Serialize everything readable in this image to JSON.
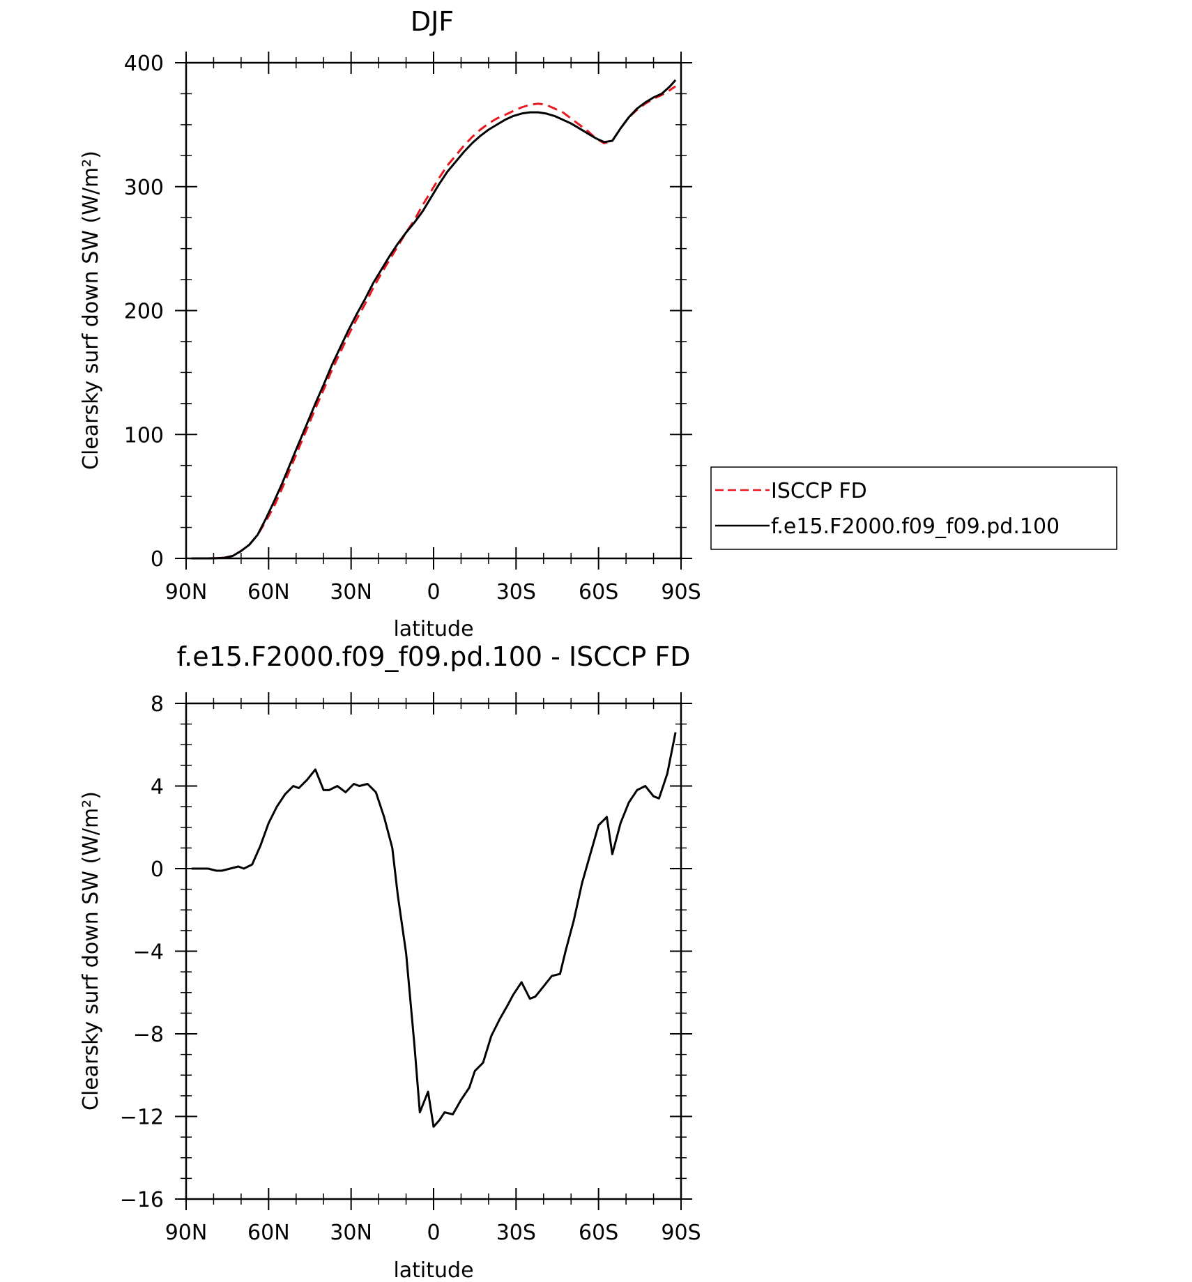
{
  "chart_data": [
    {
      "type": "line",
      "title": "DJF",
      "xlabel": "latitude",
      "ylabel": "Clearsky surf down SW (W/m²)",
      "xlim": [
        -90,
        90
      ],
      "ylim": [
        0,
        400
      ],
      "xticks": [
        -90,
        -60,
        -30,
        0,
        30,
        60,
        90
      ],
      "xtick_labels": [
        "90N",
        "60N",
        "30N",
        "0",
        "30S",
        "60S",
        "90S"
      ],
      "yticks": [
        0,
        100,
        200,
        300,
        400
      ],
      "ytick_labels": [
        "0",
        "100",
        "200",
        "300",
        "400"
      ],
      "grid": false,
      "legend_position": "right",
      "series": [
        {
          "name": "ISCCP FD",
          "color": "#e8191e",
          "style": "dashed",
          "x": [
            -88,
            -85,
            -82,
            -79,
            -76,
            -73,
            -70,
            -67,
            -64,
            -61,
            -58,
            -55,
            -52,
            -49,
            -46,
            -43,
            -40,
            -37,
            -34,
            -31,
            -28,
            -25,
            -22,
            -19,
            -16,
            -13,
            -10,
            -7,
            -4,
            -1,
            2,
            5,
            8,
            11,
            14,
            17,
            20,
            23,
            26,
            29,
            32,
            35,
            38,
            41,
            44,
            47,
            50,
            53,
            56,
            59,
            62,
            65,
            68,
            71,
            74,
            77,
            80,
            83,
            86,
            88
          ],
          "y": [
            0,
            0,
            0,
            0.2,
            0.6,
            2,
            6,
            11,
            19,
            30,
            42,
            57,
            73,
            89,
            105,
            121,
            136,
            152,
            166,
            180,
            193,
            205,
            218,
            230,
            241,
            252,
            263,
            273,
            285,
            296,
            307,
            317,
            325,
            333,
            340,
            346,
            351,
            355,
            358,
            361,
            364,
            366,
            367,
            366,
            363,
            360,
            355,
            350,
            345,
            339,
            335,
            337,
            347,
            356,
            362,
            367,
            371,
            374,
            378,
            381
          ]
        },
        {
          "name": "f.e15.F2000.f09_f09.pd.100",
          "color": "#000000",
          "style": "solid",
          "x": [
            -88,
            -85,
            -82,
            -79,
            -76,
            -73,
            -70,
            -67,
            -64,
            -61,
            -58,
            -55,
            -52,
            -49,
            -46,
            -43,
            -40,
            -37,
            -34,
            -31,
            -28,
            -25,
            -22,
            -19,
            -16,
            -13,
            -10,
            -7,
            -4,
            -1,
            2,
            5,
            8,
            11,
            14,
            17,
            20,
            23,
            26,
            29,
            32,
            35,
            38,
            41,
            44,
            47,
            50,
            53,
            56,
            59,
            62,
            65,
            68,
            71,
            74,
            77,
            80,
            83,
            86,
            88
          ],
          "y": [
            0,
            0,
            0,
            0.1,
            0.5,
            2,
            6,
            11,
            19,
            32,
            46,
            61,
            77,
            93,
            109,
            125,
            140,
            156,
            170,
            184,
            197,
            209,
            222,
            233,
            244,
            254,
            263,
            271,
            280,
            291,
            302,
            312,
            320,
            328,
            335,
            341,
            346,
            350,
            354,
            357,
            359,
            360,
            360,
            359,
            357,
            354,
            351,
            347,
            343,
            339,
            336,
            337,
            347,
            356,
            363,
            368,
            372,
            375,
            381,
            386
          ]
        }
      ]
    },
    {
      "type": "line",
      "title": "f.e15.F2000.f09_f09.pd.100 - ISCCP FD",
      "xlabel": "latitude",
      "ylabel": "Clearsky surf down SW (W/m²)",
      "xlim": [
        -90,
        90
      ],
      "ylim": [
        -16,
        8
      ],
      "xticks": [
        -90,
        -60,
        -30,
        0,
        30,
        60,
        90
      ],
      "xtick_labels": [
        "90N",
        "60N",
        "30N",
        "0",
        "30S",
        "60S",
        "90S"
      ],
      "yticks": [
        -16,
        -12,
        -8,
        -4,
        0,
        4,
        8
      ],
      "ytick_labels": [
        "-16",
        "-12",
        "-8",
        "-4",
        "0",
        "4",
        "8"
      ],
      "grid": false,
      "series": [
        {
          "color": "#000000",
          "style": "solid",
          "x": [
            -88,
            -85,
            -82,
            -79,
            -77,
            -74,
            -71,
            -69,
            -66,
            -63,
            -60,
            -57,
            -54,
            -51,
            -49,
            -46,
            -43,
            -40,
            -38,
            -35,
            -32,
            -29,
            -27,
            -24,
            -21,
            -18,
            -15,
            -13,
            -10,
            -7,
            -5,
            -2,
            0,
            2,
            4,
            7,
            10,
            13,
            15,
            18,
            21,
            24,
            27,
            29,
            32,
            35,
            37,
            40,
            43,
            46,
            48,
            51,
            54,
            57,
            60,
            63,
            65,
            68,
            71,
            74,
            77,
            80,
            82,
            85,
            88
          ],
          "y": [
            0,
            0,
            0,
            -0.1,
            -0.1,
            0,
            0.1,
            0,
            0.2,
            1.1,
            2.2,
            3,
            3.6,
            4,
            3.9,
            4.3,
            4.8,
            3.8,
            3.8,
            4,
            3.7,
            4.1,
            4,
            4.1,
            3.7,
            2.5,
            1,
            -1.3,
            -4.1,
            -8.5,
            -11.8,
            -10.8,
            -12.5,
            -12.2,
            -11.8,
            -11.9,
            -11.2,
            -10.6,
            -9.8,
            -9.4,
            -8.1,
            -7.3,
            -6.6,
            -6.1,
            -5.5,
            -6.3,
            -6.2,
            -5.7,
            -5.2,
            -5.1,
            -4,
            -2.5,
            -0.7,
            0.7,
            2.1,
            2.5,
            0.7,
            2.2,
            3.2,
            3.8,
            4,
            3.5,
            3.4,
            4.6,
            6.6
          ]
        }
      ]
    }
  ]
}
